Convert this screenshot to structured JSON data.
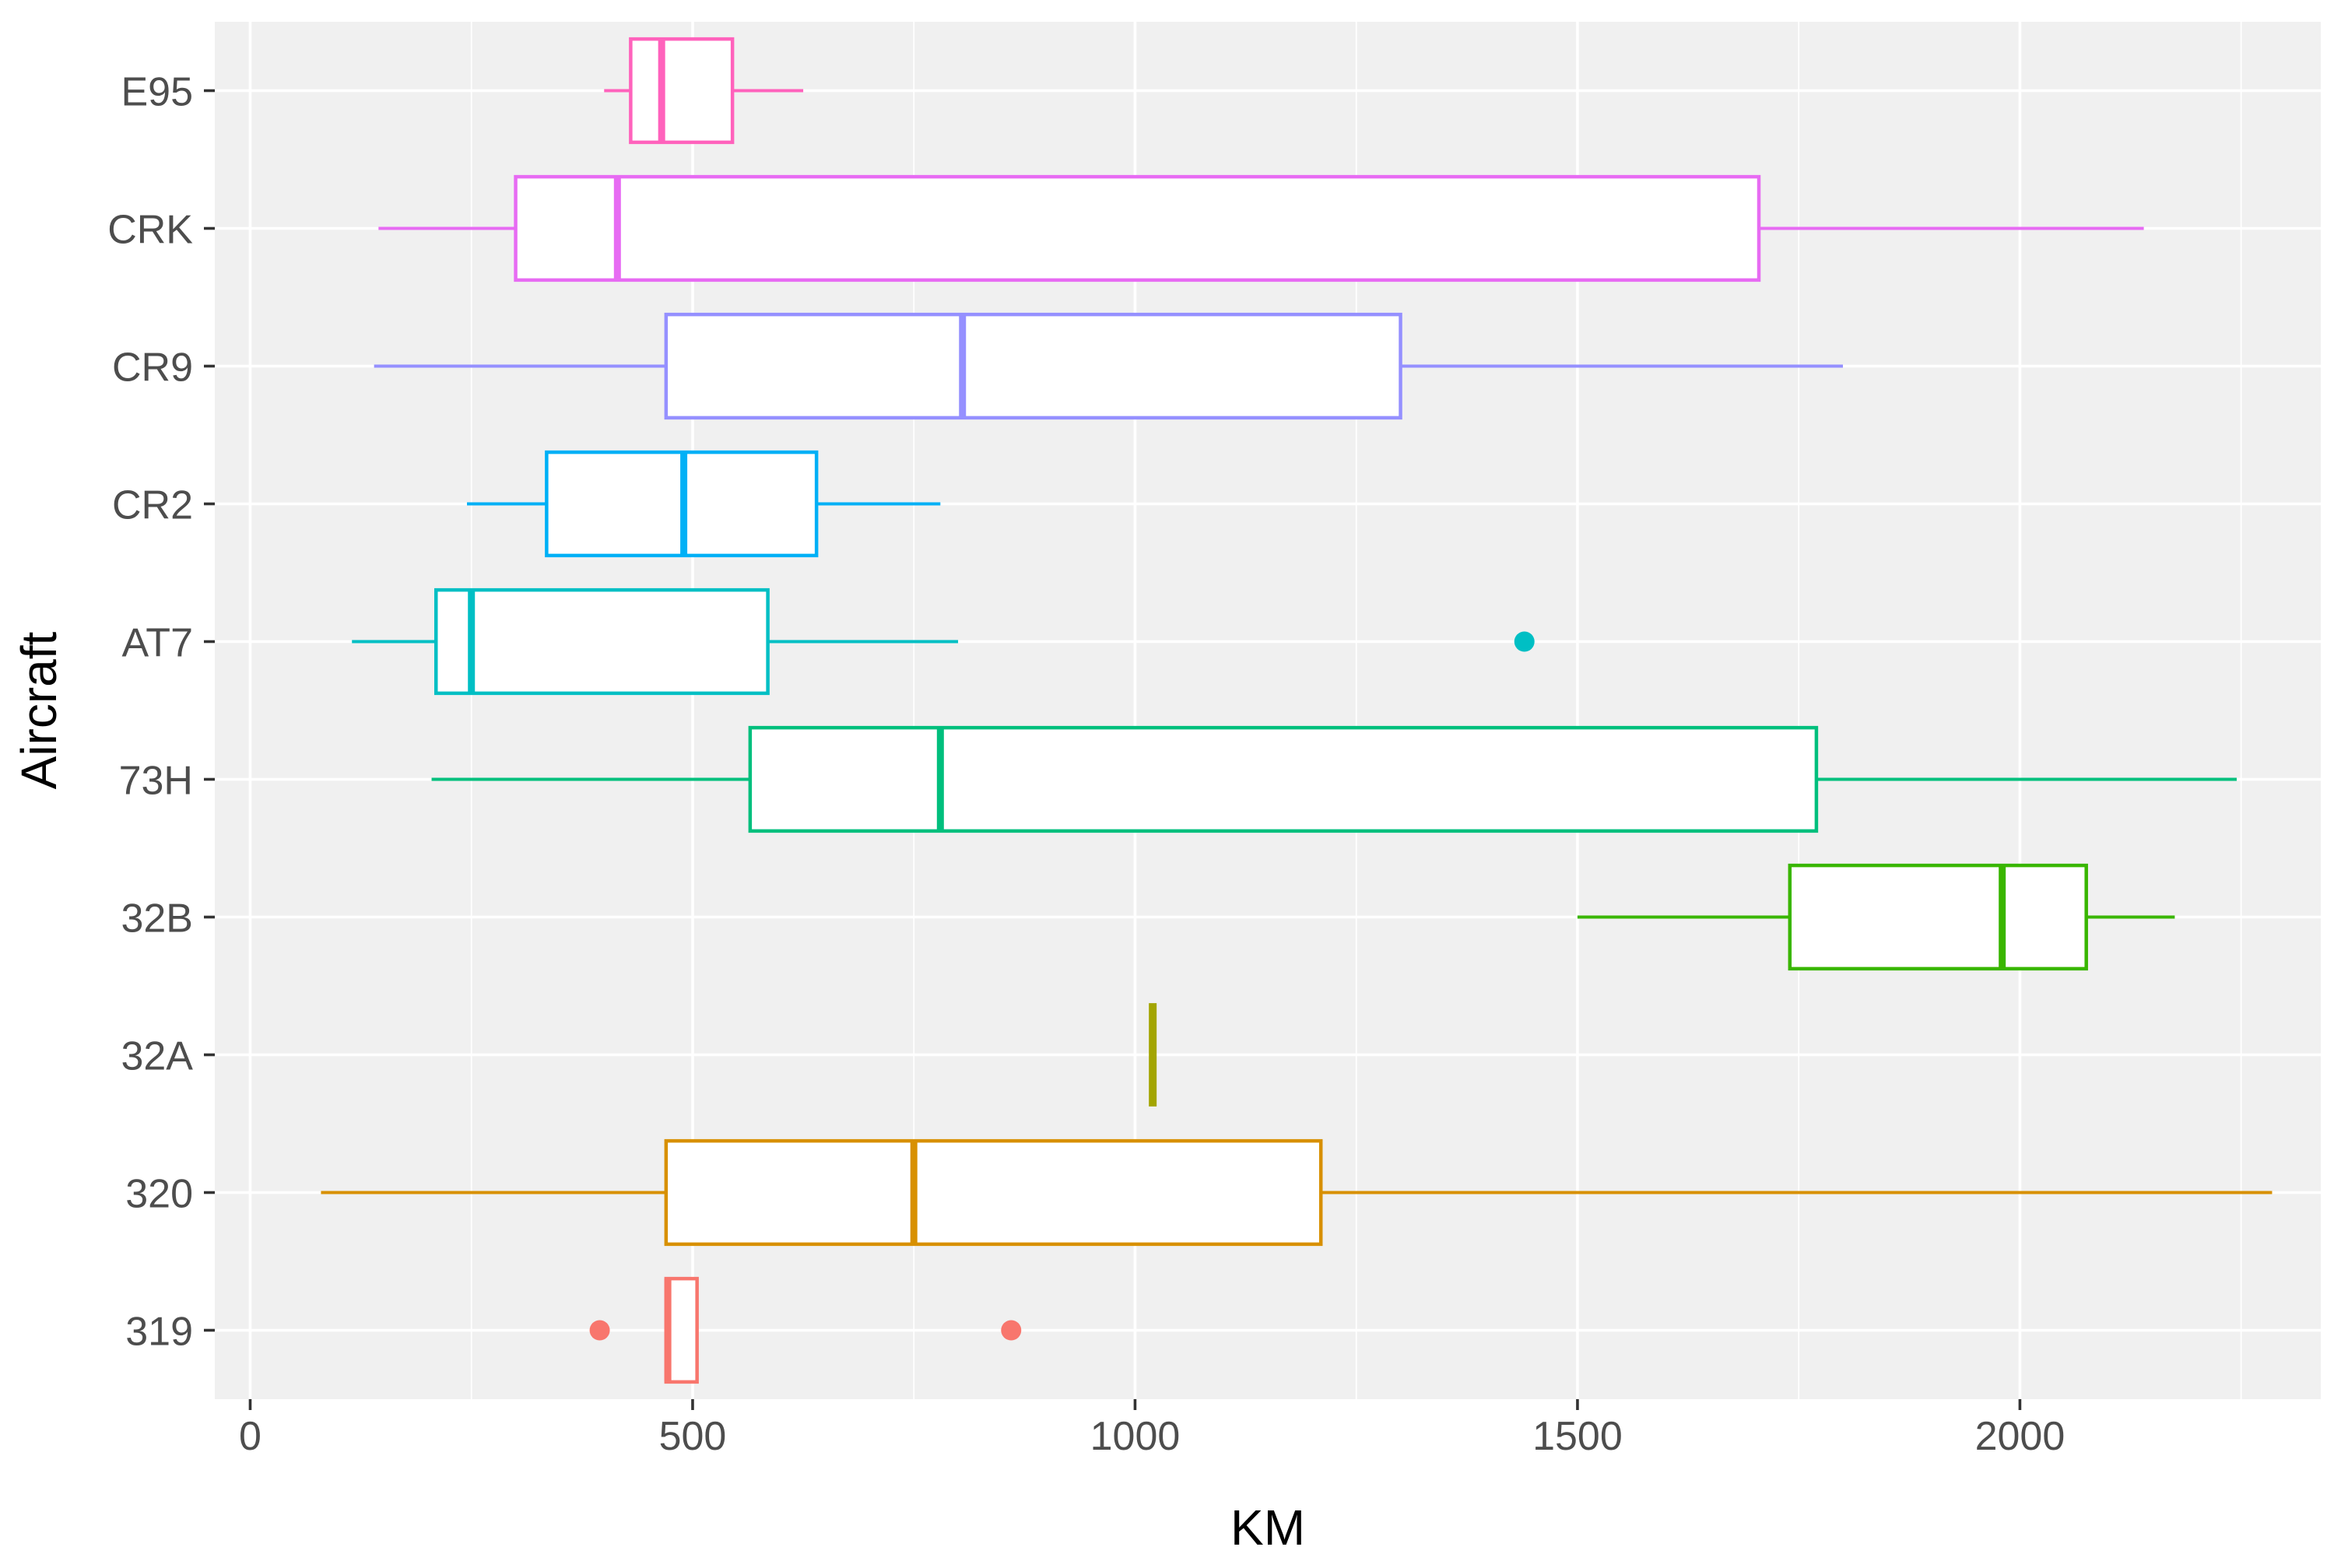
{
  "chart_data": {
    "type": "boxplot",
    "orientation": "horizontal",
    "title": "",
    "xlabel": "KM",
    "ylabel": "Aircraft",
    "xlim": [
      -40,
      2340
    ],
    "x_ticks": [
      0,
      500,
      1000,
      1500,
      2000
    ],
    "x_tick_labels": [
      "0",
      "500",
      "1000",
      "1500",
      "2000"
    ],
    "grid": true,
    "legend": "none",
    "categories": [
      "319",
      "320",
      "32A",
      "32B",
      "73H",
      "AT7",
      "CR2",
      "CR9",
      "CRK",
      "E95"
    ],
    "series": [
      {
        "category": "319",
        "color": "#F8766D",
        "whisker_low": 470,
        "q1": 470,
        "median": 472,
        "q3": 505,
        "whisker_high": 505,
        "outliers": [
          395,
          860
        ]
      },
      {
        "category": "320",
        "color": "#D89000",
        "whisker_low": 80,
        "q1": 470,
        "median": 750,
        "q3": 1210,
        "whisker_high": 2285,
        "outliers": []
      },
      {
        "category": "32A",
        "color": "#A3A500",
        "whisker_low": 1020,
        "q1": 1020,
        "median": 1020,
        "q3": 1020,
        "whisker_high": 1020,
        "outliers": []
      },
      {
        "category": "32B",
        "color": "#39B600",
        "whisker_low": 1500,
        "q1": 1740,
        "median": 1980,
        "q3": 2075,
        "whisker_high": 2175,
        "outliers": []
      },
      {
        "category": "73H",
        "color": "#00BF7D",
        "whisker_low": 205,
        "q1": 565,
        "median": 780,
        "q3": 1770,
        "whisker_high": 2245,
        "outliers": []
      },
      {
        "category": "AT7",
        "color": "#00BFC4",
        "whisker_low": 115,
        "q1": 210,
        "median": 250,
        "q3": 585,
        "whisker_high": 800,
        "outliers": [
          1440
        ]
      },
      {
        "category": "CR2",
        "color": "#00B0F6",
        "whisker_low": 245,
        "q1": 335,
        "median": 490,
        "q3": 640,
        "whisker_high": 780,
        "outliers": []
      },
      {
        "category": "CR9",
        "color": "#9590FF",
        "whisker_low": 140,
        "q1": 470,
        "median": 805,
        "q3": 1300,
        "whisker_high": 1800,
        "outliers": []
      },
      {
        "category": "CRK",
        "color": "#E76BF3",
        "whisker_low": 145,
        "q1": 300,
        "median": 415,
        "q3": 1705,
        "whisker_high": 2140,
        "outliers": []
      },
      {
        "category": "E95",
        "color": "#FF62BC",
        "whisker_low": 400,
        "q1": 430,
        "median": 465,
        "q3": 545,
        "whisker_high": 625,
        "outliers": []
      }
    ]
  }
}
